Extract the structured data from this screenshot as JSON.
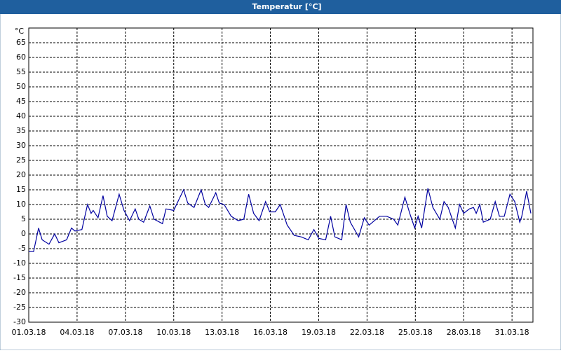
{
  "chart_data": {
    "type": "line",
    "title": "Temperatur [°C]",
    "y_label": "°C",
    "x": [
      0,
      0.3,
      0.61,
      0.83,
      1.26,
      1.61,
      1.87,
      2.35,
      2.65,
      2.87,
      3.3,
      3.65,
      3.87,
      4,
      4.3,
      4.61,
      4.87,
      5.17,
      5.61,
      5.91,
      6.26,
      6.61,
      6.83,
      7.13,
      7.52,
      7.78,
      8.3,
      8.52,
      9,
      9.61,
      9.87,
      10.26,
      10.7,
      10.96,
      11.17,
      11.61,
      11.83,
      12.13,
      12.57,
      13,
      13.35,
      13.65,
      13.96,
      14.3,
      14.7,
      14.96,
      15.3,
      15.61,
      16.04,
      16.48,
      16.91,
      17.35,
      17.7,
      18,
      18.43,
      18.74,
      19,
      19.43,
      19.7,
      19.96,
      20.48,
      20.83,
      21.13,
      21.35,
      21.78,
      22.22,
      22.65,
      22.91,
      23.35,
      23.65,
      23.96,
      24.17,
      24.39,
      24.78,
      25.09,
      25.52,
      25.78,
      26.04,
      26.48,
      26.74,
      27,
      27.35,
      27.61,
      27.78,
      28,
      28.22,
      28.65,
      28.96,
      29.22,
      29.52,
      29.87,
      30.17,
      30.48,
      30.61,
      30.91,
      31.17
    ],
    "series": [
      {
        "name": "Temperatur",
        "color": "#0000a0",
        "values": [
          -6,
          -6,
          2,
          -2,
          -3.5,
          0,
          -3,
          -2,
          2,
          1,
          1.5,
          10,
          7,
          8,
          5.5,
          13,
          6,
          4.5,
          13.5,
          8,
          4.5,
          8.5,
          5,
          4,
          9.5,
          5,
          3.5,
          8.5,
          8,
          15,
          10.5,
          9,
          15,
          10,
          9,
          14,
          10.5,
          10,
          6,
          4.5,
          5,
          13.5,
          7,
          4.5,
          11,
          7.5,
          7.5,
          10,
          3,
          -0.5,
          -1,
          -2,
          1.5,
          -1.5,
          -2,
          6,
          -1,
          -2,
          10,
          4,
          -1,
          5.5,
          3,
          4,
          6,
          6,
          5,
          3,
          12.5,
          7,
          2,
          6,
          2,
          15.5,
          9,
          5,
          11,
          9,
          2,
          10,
          7,
          8.5,
          9,
          7,
          10,
          4,
          5,
          11,
          6,
          6,
          13.5,
          11,
          4,
          6,
          14.5,
          7
        ]
      }
    ],
    "xlim": [
      0,
      31.3
    ],
    "xticks": [
      {
        "value": 0,
        "label": "01.03.18"
      },
      {
        "value": 3,
        "label": "04.03.18"
      },
      {
        "value": 6,
        "label": "07.03.18"
      },
      {
        "value": 9,
        "label": "10.03.18"
      },
      {
        "value": 12,
        "label": "13.03.18"
      },
      {
        "value": 15,
        "label": "16.03.18"
      },
      {
        "value": 18,
        "label": "19.03.18"
      },
      {
        "value": 21,
        "label": "22.03.18"
      },
      {
        "value": 24,
        "label": "25.03.18"
      },
      {
        "value": 27,
        "label": "28.03.18"
      },
      {
        "value": 30,
        "label": "31.03.18"
      }
    ],
    "ylim": [
      -30,
      70
    ],
    "yticks": [
      -30,
      -25,
      -20,
      -15,
      -10,
      -5,
      0,
      5,
      10,
      15,
      20,
      25,
      30,
      35,
      40,
      45,
      50,
      55,
      60,
      65
    ],
    "grid": true
  }
}
